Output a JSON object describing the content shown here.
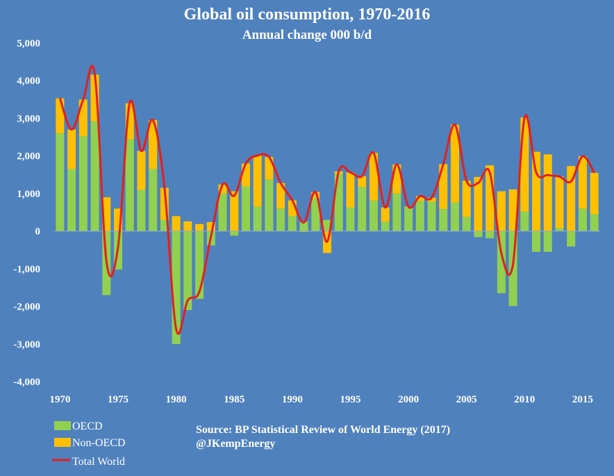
{
  "chart_data": {
    "type": "bar",
    "title": "Global oil consumption, 1970-2016",
    "subtitle": "Annual change 000 b/d",
    "stacked": true,
    "categories": [
      1970,
      1971,
      1972,
      1973,
      1974,
      1975,
      1976,
      1977,
      1978,
      1979,
      1980,
      1981,
      1982,
      1983,
      1984,
      1985,
      1986,
      1987,
      1988,
      1989,
      1990,
      1991,
      1992,
      1993,
      1994,
      1995,
      1996,
      1997,
      1998,
      1999,
      2000,
      2001,
      2002,
      2003,
      2004,
      2005,
      2006,
      2007,
      2008,
      2009,
      2010,
      2011,
      2012,
      2013,
      2014,
      2015,
      2016
    ],
    "x_tick_labels": [
      "1970",
      "1975",
      "1980",
      "1985",
      "1990",
      "1995",
      "2000",
      "2005",
      "2010",
      "2015"
    ],
    "y_tick_labels": [
      "5,000",
      "4,000",
      "3,000",
      "2,000",
      "1,000",
      "0",
      "-1,000",
      "-2,000",
      "-3,000",
      "-4,000"
    ],
    "ylim": [
      -4000,
      5000
    ],
    "series": [
      {
        "name": "OECD",
        "kind": "bar",
        "color": "#92d050",
        "values": [
          2600,
          1650,
          2520,
          2920,
          -1700,
          -1020,
          2440,
          1100,
          1650,
          300,
          -3000,
          -2100,
          -1800,
          -380,
          1000,
          -120,
          1190,
          650,
          1370,
          600,
          400,
          250,
          870,
          300,
          1520,
          630,
          1170,
          810,
          250,
          1000,
          630,
          800,
          780,
          590,
          760,
          380,
          -160,
          -190,
          -1650,
          -1990,
          520,
          -550,
          -550,
          80,
          -410,
          600,
          450
        ]
      },
      {
        "name": "Non-OECD",
        "kind": "bar",
        "color": "#ffc000",
        "values": [
          930,
          1050,
          980,
          1240,
          900,
          600,
          960,
          1030,
          1300,
          850,
          400,
          260,
          190,
          240,
          240,
          1060,
          610,
          1360,
          600,
          680,
          420,
          -20,
          170,
          -580,
          70,
          930,
          290,
          1270,
          380,
          770,
          20,
          130,
          110,
          1190,
          2070,
          960,
          1440,
          1750,
          1060,
          1110,
          2500,
          2110,
          2040,
          1370,
          1730,
          1390,
          1100
        ]
      },
      {
        "name": "Total World",
        "kind": "line",
        "color": "#e2201c",
        "values": [
          3530,
          2700,
          3500,
          4160,
          -800,
          -420,
          3400,
          2130,
          2950,
          1150,
          -2600,
          -1840,
          -1610,
          -140,
          1240,
          940,
          1800,
          2010,
          1970,
          1280,
          820,
          230,
          1040,
          -280,
          1590,
          1560,
          1460,
          2080,
          630,
          1770,
          650,
          930,
          890,
          1780,
          2830,
          1340,
          1280,
          1560,
          -590,
          -880,
          3020,
          1560,
          1490,
          1450,
          1320,
          1990,
          1550
        ]
      }
    ],
    "legend": {
      "position": "bottom-left"
    },
    "annotation_lines": [
      "Source: BP Statistical Review of World Energy (2017)",
      "@JKempEnergy"
    ],
    "grid": false,
    "background_color": "#4f81bd"
  }
}
